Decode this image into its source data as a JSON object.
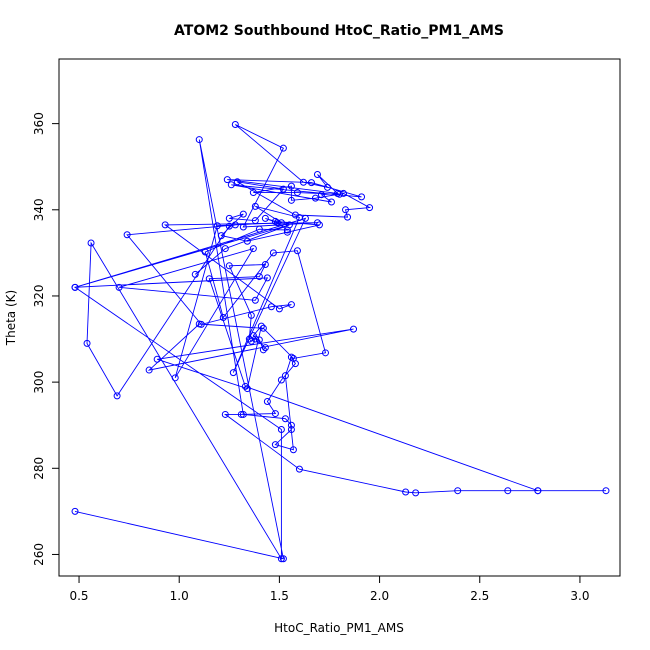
{
  "chart_data": {
    "type": "line",
    "title": "ATOM2 Southbound HtoC_Ratio_PM1_AMS",
    "xlabel": "HtoC_Ratio_PM1_AMS",
    "ylabel": "Theta (K)",
    "xlim": [
      0.4,
      3.2
    ],
    "ylim": [
      255,
      375
    ],
    "xticks": [
      0.5,
      1.0,
      1.5,
      2.0,
      2.5,
      3.0
    ],
    "xtick_labels": [
      "0.5",
      "1.0",
      "1.5",
      "2.0",
      "2.5",
      "3.0"
    ],
    "yticks": [
      260,
      280,
      300,
      320,
      340,
      360
    ],
    "ytick_labels": [
      "260",
      "280",
      "300",
      "320",
      "340",
      "360"
    ],
    "grid": false,
    "markers": "open-circle",
    "series": [
      {
        "color": "#0000ff",
        "points": [
          [
            0.48,
            270.0
          ],
          [
            1.52,
            259.0
          ],
          [
            1.1,
            356.3
          ],
          [
            1.32,
            292.5
          ],
          [
            1.53,
            291.5
          ],
          [
            1.56,
            290.0
          ],
          [
            1.56,
            289.0
          ],
          [
            1.48,
            285.5
          ],
          [
            1.57,
            284.3
          ],
          [
            1.53,
            301.5
          ],
          [
            1.56,
            305.8
          ],
          [
            1.58,
            304.3
          ],
          [
            1.51,
            300.5
          ],
          [
            1.44,
            295.5
          ],
          [
            1.48,
            292.7
          ],
          [
            1.31,
            292.5
          ],
          [
            1.23,
            292.5
          ],
          [
            1.6,
            279.8
          ],
          [
            2.13,
            274.5
          ],
          [
            2.18,
            274.3
          ],
          [
            2.39,
            274.8
          ],
          [
            2.64,
            274.8
          ],
          [
            2.79,
            274.8
          ],
          [
            3.13,
            274.8
          ],
          [
            2.79,
            274.8
          ],
          [
            1.33,
            299.0
          ],
          [
            1.15,
            324.0
          ],
          [
            1.4,
            324.5
          ],
          [
            1.43,
            327.3
          ],
          [
            1.25,
            327.0
          ],
          [
            1.36,
            315.5
          ],
          [
            1.35,
            310.0
          ],
          [
            1.36,
            309.5
          ],
          [
            1.38,
            310.0
          ],
          [
            1.4,
            309.8
          ],
          [
            1.42,
            307.5
          ],
          [
            1.43,
            308.0
          ],
          [
            1.37,
            310.8
          ],
          [
            1.41,
            313.0
          ],
          [
            1.34,
            298.5
          ],
          [
            0.89,
            305.3
          ],
          [
            1.87,
            312.3
          ],
          [
            0.85,
            302.8
          ],
          [
            1.1,
            313.5
          ],
          [
            1.42,
            312.5
          ],
          [
            1.57,
            305.5
          ],
          [
            1.73,
            306.8
          ],
          [
            1.59,
            330.5
          ],
          [
            1.47,
            330.0
          ],
          [
            1.22,
            315.0
          ],
          [
            1.13,
            330.2
          ],
          [
            1.4,
            335.5
          ],
          [
            1.54,
            335.3
          ],
          [
            1.49,
            337.0
          ],
          [
            1.43,
            338.0
          ],
          [
            1.48,
            337.3
          ],
          [
            1.7,
            336.5
          ],
          [
            1.54,
            334.8
          ],
          [
            1.34,
            332.7
          ],
          [
            1.21,
            334.0
          ],
          [
            1.32,
            339.0
          ],
          [
            1.25,
            338.0
          ],
          [
            1.38,
            337.5
          ],
          [
            1.52,
            344.8
          ],
          [
            1.29,
            346.5
          ],
          [
            1.58,
            338.8
          ],
          [
            1.84,
            338.3
          ],
          [
            1.83,
            340.0
          ],
          [
            1.95,
            340.5
          ],
          [
            1.82,
            343.8
          ],
          [
            1.68,
            342.7
          ],
          [
            1.56,
            342.2
          ],
          [
            1.56,
            345.5
          ],
          [
            1.37,
            344.0
          ],
          [
            1.59,
            344.0
          ],
          [
            1.8,
            343.6
          ],
          [
            1.79,
            343.8
          ],
          [
            1.71,
            343.5
          ],
          [
            1.76,
            341.8
          ],
          [
            1.26,
            345.8
          ],
          [
            1.91,
            343.0
          ],
          [
            1.66,
            346.3
          ],
          [
            1.24,
            347.0
          ],
          [
            1.79,
            343.8
          ],
          [
            1.69,
            348.2
          ],
          [
            1.74,
            345.2
          ],
          [
            1.62,
            346.4
          ],
          [
            1.28,
            359.8
          ],
          [
            1.52,
            354.3
          ],
          [
            1.32,
            336.0
          ],
          [
            1.69,
            337.0
          ],
          [
            0.93,
            336.5
          ],
          [
            1.5,
            317.0
          ],
          [
            1.56,
            318.0
          ],
          [
            1.46,
            317.5
          ],
          [
            1.11,
            313.4
          ],
          [
            0.74,
            334.2
          ],
          [
            1.28,
            336.5
          ],
          [
            1.25,
            336.2
          ],
          [
            0.69,
            296.8
          ],
          [
            0.54,
            309.0
          ],
          [
            0.56,
            332.3
          ],
          [
            1.51,
            259.0
          ],
          [
            1.51,
            289.0
          ],
          [
            0.48,
            322.0
          ],
          [
            1.44,
            324.2
          ],
          [
            1.38,
            319.0
          ],
          [
            0.7,
            322.0
          ],
          [
            1.37,
            331.0
          ],
          [
            0.98,
            301.0
          ],
          [
            1.19,
            336.3
          ],
          [
            1.51,
            337.0
          ],
          [
            1.38,
            340.8
          ],
          [
            1.6,
            338.2
          ],
          [
            1.27,
            302.2
          ],
          [
            1.63,
            338.0
          ],
          [
            0.48,
            322.0
          ],
          [
            1.55,
            336.5
          ],
          [
            1.23,
            331.0
          ],
          [
            1.08,
            325.0
          ]
        ]
      }
    ]
  }
}
